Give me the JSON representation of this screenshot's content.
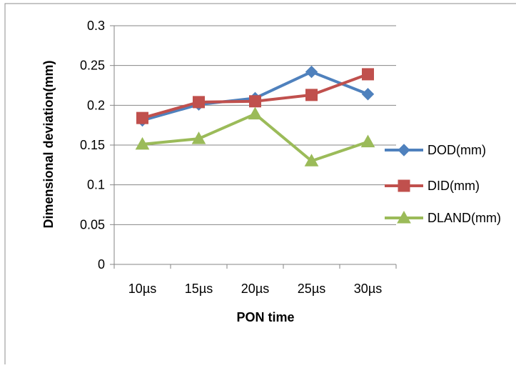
{
  "chart_data": {
    "type": "line",
    "title": "",
    "xlabel": "PON time",
    "ylabel": "Dimensional deviation(mm)",
    "categories": [
      "10µs",
      "15µs",
      "20µs",
      "25µs",
      "30µs"
    ],
    "ylim": [
      0,
      0.3
    ],
    "yticks": [
      "0",
      "0.05",
      "0.1",
      "0.15",
      "0.2",
      "0.25",
      "0.3"
    ],
    "grid": "horizontal",
    "legend_position": "right",
    "series": [
      {
        "name": "DOD(mm)",
        "color": "#4F81BD",
        "marker": "diamond",
        "values": [
          0.181,
          0.201,
          0.209,
          0.242,
          0.214
        ]
      },
      {
        "name": "DID(mm)",
        "color": "#C0504D",
        "marker": "square",
        "values": [
          0.184,
          0.204,
          0.205,
          0.213,
          0.239
        ]
      },
      {
        "name": "DLAND(mm)",
        "color": "#9BBB59",
        "marker": "triangle",
        "values": [
          0.151,
          0.158,
          0.189,
          0.13,
          0.154
        ]
      }
    ]
  }
}
